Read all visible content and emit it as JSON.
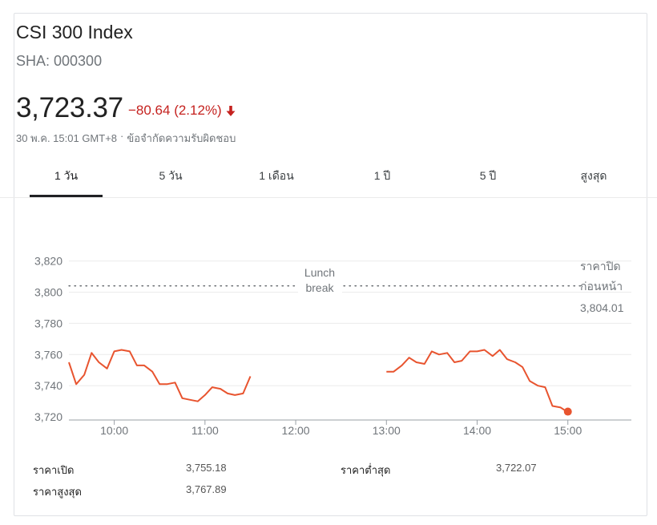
{
  "header": {
    "title": "CSI 300 Index",
    "ticker": "SHA: 000300",
    "price": "3,723.37",
    "change": "−80.64 (2.12%)",
    "change_color": "#c5221f",
    "arrow_icon": "arrow-down-icon",
    "timestamp": "30 พ.ค. 15:01 GMT+8",
    "separator": "·",
    "disclaimer": "ข้อจำกัดความรับผิดชอบ"
  },
  "tabs": [
    {
      "label": "1 วัน",
      "active": true
    },
    {
      "label": "5 วัน",
      "active": false
    },
    {
      "label": "1 เดือน",
      "active": false
    },
    {
      "label": "1 ปี",
      "active": false
    },
    {
      "label": "5 ปี",
      "active": false
    },
    {
      "label": "สูงสุด",
      "active": false
    }
  ],
  "chart_data": {
    "type": "line",
    "line_color": "#e8542f",
    "y_ticks": [
      "3,820",
      "3,800",
      "3,780",
      "3,760",
      "3,740",
      "3,720"
    ],
    "y_tick_values": [
      3820,
      3800,
      3780,
      3760,
      3740,
      3720
    ],
    "ylim": [
      3718,
      3828
    ],
    "x_ticks": [
      "10:00",
      "11:00",
      "12:00",
      "13:00",
      "14:00",
      "15:00"
    ],
    "x_tick_values": [
      10.0,
      11.0,
      12.0,
      13.0,
      14.0,
      15.0
    ],
    "xlim": [
      9.5,
      15.7
    ],
    "grid": true,
    "previous_close": {
      "value": 3804.01,
      "label_line1": "ราคาปิด",
      "label_line2": "ก่อนหน้า",
      "label_value": "3,804.01"
    },
    "lunch_break": {
      "line1": "Lunch",
      "line2": "break"
    },
    "series": [
      {
        "segment": "morning",
        "x": [
          9.5,
          9.58,
          9.67,
          9.75,
          9.83,
          9.92,
          10.0,
          10.08,
          10.17,
          10.25,
          10.33,
          10.42,
          10.5,
          10.58,
          10.67,
          10.75,
          10.83,
          10.92,
          11.0,
          11.08,
          11.17,
          11.25,
          11.33,
          11.42,
          11.5
        ],
        "y": [
          3755,
          3741,
          3747,
          3761,
          3755,
          3751,
          3762,
          3763,
          3762,
          3753,
          3753,
          3749,
          3741,
          3741,
          3742,
          3732,
          3731,
          3730,
          3734,
          3739,
          3738,
          3735,
          3734,
          3735,
          3746
        ]
      },
      {
        "segment": "afternoon",
        "x": [
          13.0,
          13.08,
          13.17,
          13.25,
          13.33,
          13.42,
          13.5,
          13.58,
          13.67,
          13.75,
          13.83,
          13.92,
          14.0,
          14.08,
          14.17,
          14.25,
          14.33,
          14.42,
          14.5,
          14.58,
          14.67,
          14.75,
          14.83,
          14.92,
          15.0
        ],
        "y": [
          3749,
          3749,
          3753,
          3758,
          3755,
          3754,
          3762,
          3760,
          3761,
          3755,
          3756,
          3762,
          3762,
          3763,
          3759,
          3763,
          3757,
          3755,
          3752,
          3743,
          3740,
          3739,
          3727,
          3726,
          3723
        ]
      }
    ],
    "last_point": {
      "x": 15.0,
      "y": 3723.37
    }
  },
  "stats": {
    "open_label": "ราคาเปิด",
    "open_value": "3,755.18",
    "high_label": "ราคาสูงสุด",
    "high_value": "3,767.89",
    "low_label": "ราคาต่ำสุด",
    "low_value": "3,722.07"
  }
}
